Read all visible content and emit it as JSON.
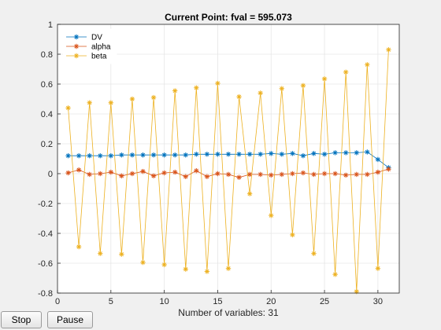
{
  "buttons": {
    "stop_label": "Stop",
    "pause_label": "Pause"
  },
  "chart_data": {
    "type": "line",
    "title": "Current Point: fval = 595.073",
    "xlabel": "Number of variables: 31",
    "ylabel": "",
    "xlim": [
      0,
      32
    ],
    "ylim": [
      -0.8,
      1
    ],
    "xticks": [
      0,
      5,
      10,
      15,
      20,
      25,
      30
    ],
    "yticks": [
      -0.8,
      -0.6,
      -0.4,
      -0.2,
      0,
      0.2,
      0.4,
      0.6,
      0.8,
      1
    ],
    "grid": true,
    "legend_position": "top-left",
    "marker": "asterisk",
    "x": [
      1,
      2,
      3,
      4,
      5,
      6,
      7,
      8,
      9,
      10,
      11,
      12,
      13,
      14,
      15,
      16,
      17,
      18,
      19,
      20,
      21,
      22,
      23,
      24,
      25,
      26,
      27,
      28,
      29,
      30,
      31
    ],
    "series": [
      {
        "name": "DV",
        "color": "#0072bd",
        "values": [
          0.12,
          0.12,
          0.12,
          0.12,
          0.12,
          0.125,
          0.125,
          0.125,
          0.125,
          0.125,
          0.125,
          0.125,
          0.13,
          0.13,
          0.13,
          0.13,
          0.13,
          0.13,
          0.13,
          0.135,
          0.13,
          0.135,
          0.12,
          0.135,
          0.13,
          0.14,
          0.14,
          0.14,
          0.145,
          0.095,
          0.04
        ]
      },
      {
        "name": "alpha",
        "color": "#d95319",
        "values": [
          0.005,
          0.025,
          -0.005,
          0.0,
          0.01,
          -0.015,
          0.0,
          0.015,
          -0.015,
          0.005,
          0.01,
          -0.02,
          0.02,
          -0.02,
          0.0,
          -0.005,
          -0.025,
          -0.005,
          -0.005,
          -0.01,
          -0.005,
          0.0,
          0.005,
          -0.005,
          0.0,
          0.0,
          -0.01,
          -0.005,
          -0.005,
          0.01,
          0.03
        ]
      },
      {
        "name": "beta",
        "color": "#edb120",
        "values": [
          0.44,
          -0.49,
          0.475,
          -0.535,
          0.475,
          -0.54,
          0.5,
          -0.595,
          0.51,
          -0.61,
          0.555,
          -0.64,
          0.575,
          -0.655,
          0.605,
          -0.635,
          0.515,
          -0.135,
          0.54,
          -0.28,
          0.57,
          -0.41,
          0.59,
          -0.535,
          0.635,
          -0.675,
          0.68,
          -0.79,
          0.73,
          -0.635,
          0.83
        ]
      }
    ]
  }
}
